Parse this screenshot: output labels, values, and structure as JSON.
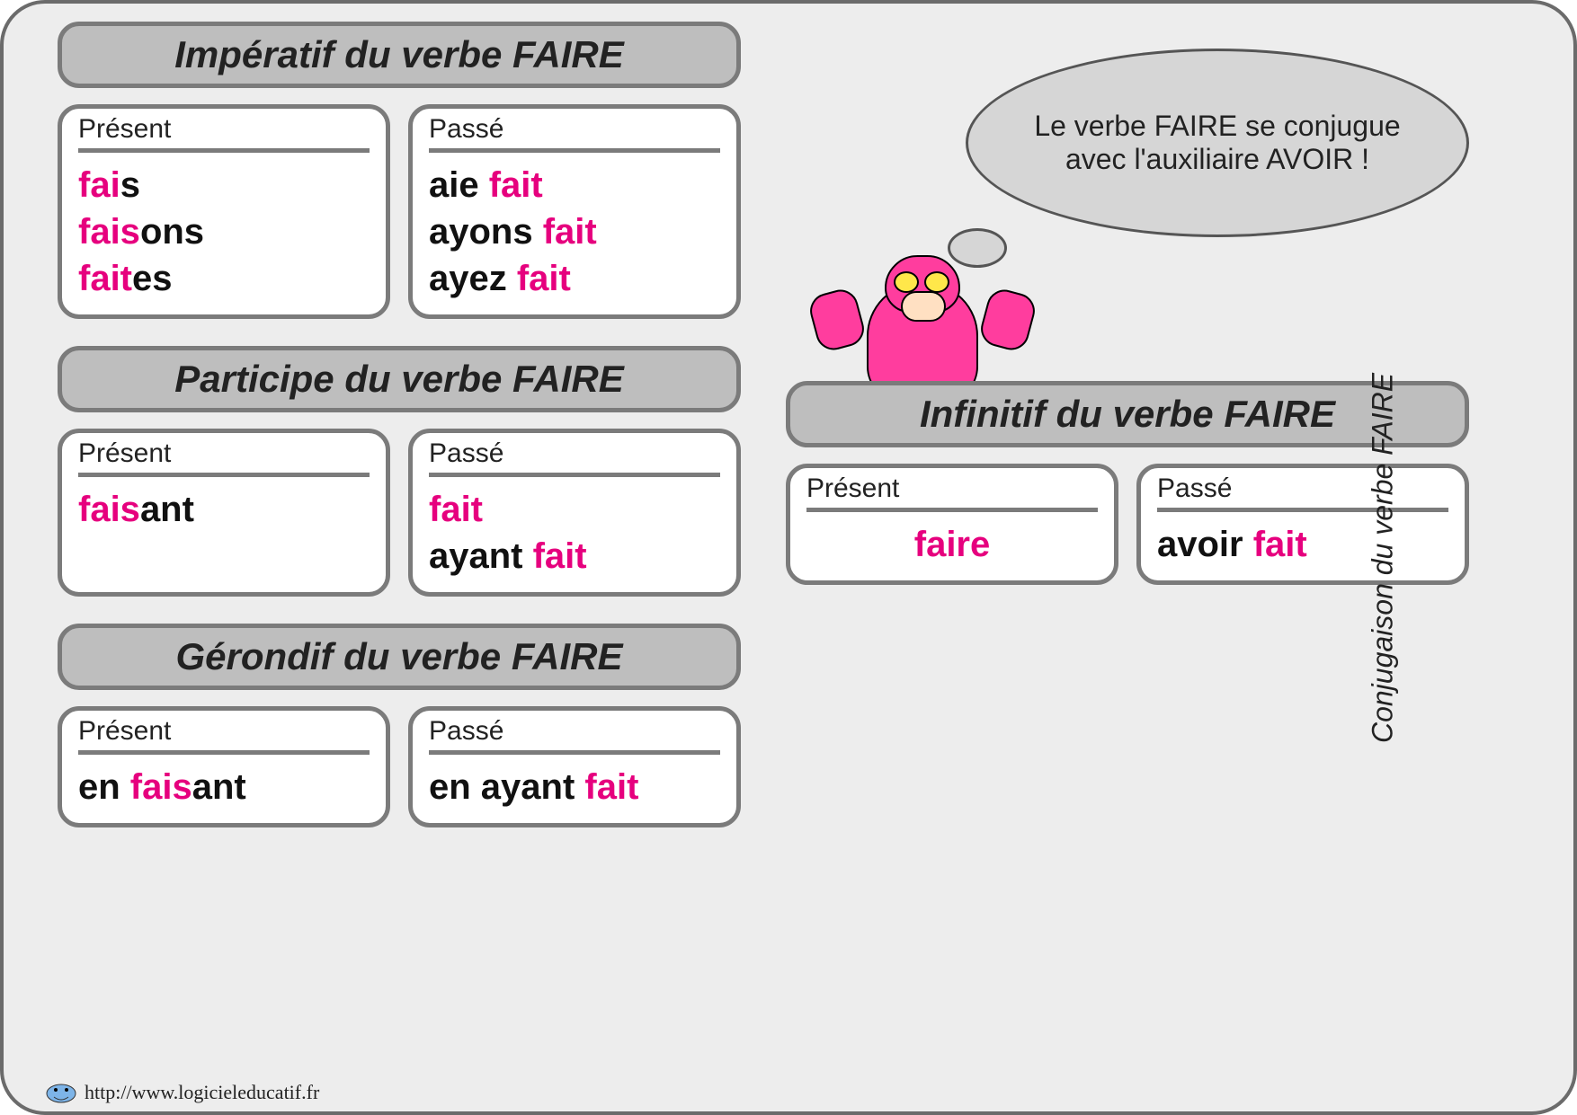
{
  "colors": {
    "page_bg": "#ededed",
    "border": "#6b6b6b",
    "header_bg": "#bebebe",
    "header_border": "#7b7b7b",
    "card_bg": "#ffffff",
    "pink": "#e6007e",
    "black": "#111111",
    "speech_bg": "#d6d6d6"
  },
  "typography": {
    "font_family": "Comic Sans MS",
    "header_fontsize_pt": 32,
    "card_title_fontsize_pt": 22,
    "card_body_fontsize_pt": 30,
    "speech_fontsize_pt": 24,
    "sidelabel_fontsize_pt": 24
  },
  "speech": {
    "text": "Le verbe FAIRE se conjugue avec l'auxiliaire AVOIR !"
  },
  "side_label": "Conjugaison du verbe FAIRE",
  "footer": {
    "url": "http://www.logicieleducatif.fr"
  },
  "sections": {
    "imperatif": {
      "title": "Impératif du verbe FAIRE",
      "present": {
        "label": "Présent",
        "lines": [
          [
            {
              "t": "fai",
              "c": "pink"
            },
            {
              "t": "s",
              "c": "black"
            }
          ],
          [
            {
              "t": " fais",
              "c": "pink"
            },
            {
              "t": "ons",
              "c": "black"
            }
          ],
          [
            {
              "t": " fait",
              "c": "pink"
            },
            {
              "t": "es",
              "c": "black"
            }
          ]
        ]
      },
      "passe": {
        "label": "Passé",
        "lines": [
          [
            {
              "t": "aie  ",
              "c": "black"
            },
            {
              "t": "fait",
              "c": "pink"
            }
          ],
          [
            {
              "t": "ayons ",
              "c": "black"
            },
            {
              "t": "fait",
              "c": "pink"
            }
          ],
          [
            {
              "t": "ayez  ",
              "c": "black"
            },
            {
              "t": "fait",
              "c": "pink"
            }
          ]
        ]
      }
    },
    "participe": {
      "title": "Participe du verbe FAIRE",
      "present": {
        "label": "Présent",
        "lines": [
          [
            {
              "t": "fais",
              "c": "pink"
            },
            {
              "t": "ant",
              "c": "black"
            }
          ]
        ]
      },
      "passe": {
        "label": "Passé",
        "lines": [
          [
            {
              "t": "fait",
              "c": "pink"
            }
          ],
          [
            {
              "t": "ayant ",
              "c": "black"
            },
            {
              "t": "fait",
              "c": "pink"
            }
          ]
        ]
      }
    },
    "gerondif": {
      "title": "Gérondif du verbe FAIRE",
      "present": {
        "label": "Présent",
        "lines": [
          [
            {
              "t": "en  ",
              "c": "black"
            },
            {
              "t": "fais",
              "c": "pink"
            },
            {
              "t": "ant",
              "c": "black"
            }
          ]
        ]
      },
      "passe": {
        "label": "Passé",
        "lines": [
          [
            {
              "t": "en ayant  ",
              "c": "black"
            },
            {
              "t": "fait",
              "c": "pink"
            }
          ]
        ]
      }
    },
    "infinitif": {
      "title": "Infinitif du verbe FAIRE",
      "present": {
        "label": "Présent",
        "center": true,
        "lines": [
          [
            {
              "t": "faire",
              "c": "pink"
            }
          ]
        ]
      },
      "passe": {
        "label": "Passé",
        "lines": [
          [
            {
              "t": "avoir ",
              "c": "black"
            },
            {
              "t": "fait",
              "c": "pink"
            }
          ]
        ]
      }
    }
  }
}
